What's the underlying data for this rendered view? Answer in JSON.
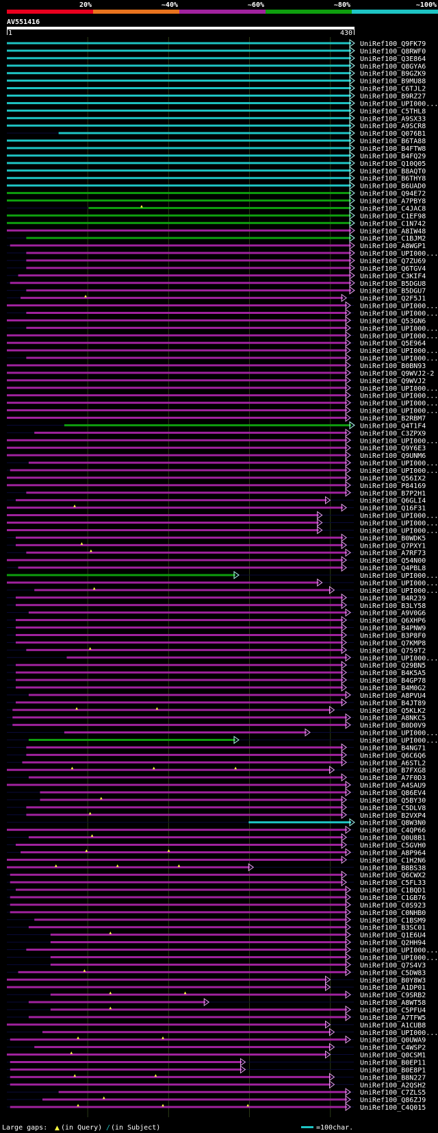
{
  "query_id": "AV551416",
  "scale": {
    "start": "1",
    "end": "430",
    "length": 430
  },
  "identity_legend": [
    {
      "label": "20%",
      "color": "#e8001e"
    },
    {
      "label": "~40%",
      "color": "#e8731e"
    },
    {
      "label": "~60%",
      "color": "#a0229e"
    },
    {
      "label": "~80%",
      "color": "#0e9e0e"
    },
    {
      "label": "~100%",
      "color": "#1ec4c4"
    }
  ],
  "footer": {
    "prefix": "Large gaps:",
    "query": "(in Query)",
    "subject_sym": "/",
    "subject": "(in Subject)",
    "unit": "=100char."
  },
  "gap_symbol": "▲",
  "hits": [
    {
      "label": "UniRef100_Q9FK79",
      "s": 1,
      "e": 430,
      "c": "c",
      "t": 0
    },
    {
      "label": "UniRef100_Q8RWF0",
      "s": 1,
      "e": 430,
      "c": "c",
      "t": 0
    },
    {
      "label": "UniRef100_Q3E864",
      "s": 1,
      "e": 430,
      "c": "c",
      "t": 0
    },
    {
      "label": "UniRef100_Q8GYA6",
      "s": 1,
      "e": 430,
      "c": "c",
      "t": 0
    },
    {
      "label": "UniRef100_B9GZK9",
      "s": 1,
      "e": 430,
      "c": "c",
      "t": 0
    },
    {
      "label": "UniRef100_B9MU88",
      "s": 1,
      "e": 430,
      "c": "c",
      "t": 0
    },
    {
      "label": "UniRef100_C6TJL2",
      "s": 1,
      "e": 430,
      "c": "c",
      "t": 0
    },
    {
      "label": "UniRef100_B9RZ27",
      "s": 1,
      "e": 430,
      "c": "c",
      "t": 0
    },
    {
      "label": "UniRef100_UPI000...",
      "s": 1,
      "e": 430,
      "c": "c",
      "t": 0
    },
    {
      "label": "UniRef100_C5THL8",
      "s": 1,
      "e": 430,
      "c": "c",
      "t": 0
    },
    {
      "label": "UniRef100_A9SX33",
      "s": 1,
      "e": 430,
      "c": "c",
      "t": 0
    },
    {
      "label": "UniRef100_A9SCR8",
      "s": 1,
      "e": 430,
      "c": "c",
      "t": 0
    },
    {
      "label": "UniRef100_Q076B1",
      "s": 65,
      "e": 430,
      "c": "c",
      "t": 0
    },
    {
      "label": "UniRef100_B6TA88",
      "s": 1,
      "e": 430,
      "c": "c",
      "t": 0
    },
    {
      "label": "UniRef100_B4FTW8",
      "s": 1,
      "e": 430,
      "c": "c",
      "t": 0
    },
    {
      "label": "UniRef100_B4FQ29",
      "s": 1,
      "e": 430,
      "c": "c",
      "t": 0
    },
    {
      "label": "UniRef100_Q10Q05",
      "s": 1,
      "e": 430,
      "c": "c",
      "t": 0
    },
    {
      "label": "UniRef100_B8AQT0",
      "s": 1,
      "e": 430,
      "c": "c",
      "t": 0
    },
    {
      "label": "UniRef100_B6THY8",
      "s": 1,
      "e": 430,
      "c": "c",
      "t": 0
    },
    {
      "label": "UniRef100_B6UAD0",
      "s": 1,
      "e": 430,
      "c": "c",
      "t": 0
    },
    {
      "label": "UniRef100_Q94E72",
      "s": 1,
      "e": 430,
      "c": "g",
      "t": 0
    },
    {
      "label": "UniRef100_A7PBY8",
      "s": 1,
      "e": 430,
      "c": "g",
      "t": 0
    },
    {
      "label": "UniRef100_C4JAC8",
      "s": 102,
      "e": 430,
      "c": "g",
      "t": 1
    },
    {
      "label": "UniRef100_C1EF98",
      "s": 1,
      "e": 430,
      "c": "g",
      "t": 0
    },
    {
      "label": "UniRef100_C1N742",
      "s": 1,
      "e": 430,
      "c": "g",
      "t": 0
    },
    {
      "label": "UniRef100_A8IW48",
      "s": 1,
      "e": 430,
      "c": "p",
      "t": 0
    },
    {
      "label": "UniRef100_C1BJM2",
      "s": 25,
      "e": 430,
      "c": "g",
      "t": 0
    },
    {
      "label": "UniRef100_A8WGP1",
      "s": 5,
      "e": 430,
      "c": "p",
      "t": 0
    },
    {
      "label": "UniRef100_UPI000...",
      "s": 25,
      "e": 430,
      "c": "p",
      "t": 0
    },
    {
      "label": "UniRef100_Q7ZU69",
      "s": 25,
      "e": 430,
      "c": "p",
      "t": 0
    },
    {
      "label": "UniRef100_Q6TGV4",
      "s": 25,
      "e": 430,
      "c": "p",
      "t": 0
    },
    {
      "label": "UniRef100_C3KIF4",
      "s": 15,
      "e": 430,
      "c": "p",
      "t": 0
    },
    {
      "label": "UniRef100_B5DGU8",
      "s": 5,
      "e": 430,
      "c": "p",
      "t": 0
    },
    {
      "label": "UniRef100_B5DGU7",
      "s": 25,
      "e": 430,
      "c": "p",
      "t": 0
    },
    {
      "label": "UniRef100_Q2F5J1",
      "s": 18,
      "e": 420,
      "c": "p",
      "t": 1
    },
    {
      "label": "UniRef100_UPI000...",
      "s": 1,
      "e": 425,
      "c": "p",
      "t": 0
    },
    {
      "label": "UniRef100_UPI000...",
      "s": 25,
      "e": 425,
      "c": "p",
      "t": 0
    },
    {
      "label": "UniRef100_Q53GN6",
      "s": 1,
      "e": 425,
      "c": "p",
      "t": 0
    },
    {
      "label": "UniRef100_UPI000...",
      "s": 25,
      "e": 425,
      "c": "p",
      "t": 0
    },
    {
      "label": "UniRef100_UPI000...",
      "s": 1,
      "e": 425,
      "c": "p",
      "t": 0
    },
    {
      "label": "UniRef100_Q5E964",
      "s": 1,
      "e": 425,
      "c": "p",
      "t": 0
    },
    {
      "label": "UniRef100_UPI000...",
      "s": 1,
      "e": 425,
      "c": "p",
      "t": 0
    },
    {
      "label": "UniRef100_UPI000...",
      "s": 25,
      "e": 425,
      "c": "p",
      "t": 0
    },
    {
      "label": "UniRef100_B0BN93",
      "s": 1,
      "e": 425,
      "c": "p",
      "t": 0
    },
    {
      "label": "UniRef100_Q9WVJ2-2",
      "s": 1,
      "e": 425,
      "c": "p",
      "t": 0
    },
    {
      "label": "UniRef100_Q9WVJ2",
      "s": 1,
      "e": 425,
      "c": "p",
      "t": 0
    },
    {
      "label": "UniRef100_UPI000...",
      "s": 1,
      "e": 425,
      "c": "p",
      "t": 0
    },
    {
      "label": "UniRef100_UPI000...",
      "s": 1,
      "e": 425,
      "c": "p",
      "t": 0
    },
    {
      "label": "UniRef100_UPI000...",
      "s": 1,
      "e": 425,
      "c": "p",
      "t": 0
    },
    {
      "label": "UniRef100_UPI000...",
      "s": 1,
      "e": 425,
      "c": "p",
      "t": 0
    },
    {
      "label": "UniRef100_B2RBM7",
      "s": 1,
      "e": 425,
      "c": "p",
      "t": 0
    },
    {
      "label": "UniRef100_Q4T1F4",
      "s": 72,
      "e": 430,
      "c": "g",
      "t": 0
    },
    {
      "label": "UniRef100_C3ZPX9",
      "s": 35,
      "e": 425,
      "c": "p",
      "t": 0
    },
    {
      "label": "UniRef100_UPI000...",
      "s": 1,
      "e": 425,
      "c": "p",
      "t": 0
    },
    {
      "label": "UniRef100_Q9Y6E3",
      "s": 1,
      "e": 425,
      "c": "p",
      "t": 0
    },
    {
      "label": "UniRef100_Q9UNM6",
      "s": 1,
      "e": 425,
      "c": "p",
      "t": 0
    },
    {
      "label": "UniRef100_UPI000...",
      "s": 28,
      "e": 425,
      "c": "p",
      "t": 0
    },
    {
      "label": "UniRef100_UPI000...",
      "s": 5,
      "e": 425,
      "c": "p",
      "t": 0
    },
    {
      "label": "UniRef100_Q56IX2",
      "s": 1,
      "e": 425,
      "c": "p",
      "t": 0
    },
    {
      "label": "UniRef100_P84169",
      "s": 1,
      "e": 425,
      "c": "p",
      "t": 0
    },
    {
      "label": "UniRef100_B7P2H1",
      "s": 25,
      "e": 425,
      "c": "p",
      "t": 0
    },
    {
      "label": "UniRef100_Q6GLI4",
      "s": 12,
      "e": 400,
      "c": "p",
      "t": 0
    },
    {
      "label": "UniRef100_Q16F31",
      "s": 1,
      "e": 420,
      "c": "p",
      "t": 1
    },
    {
      "label": "UniRef100_UPI000...",
      "s": 1,
      "e": 390,
      "c": "p",
      "t": 0
    },
    {
      "label": "UniRef100_UPI000...",
      "s": 1,
      "e": 390,
      "c": "p",
      "t": 0
    },
    {
      "label": "UniRef100_UPI000...",
      "s": 1,
      "e": 390,
      "c": "p",
      "t": 0
    },
    {
      "label": "UniRef100_B0WDK5",
      "s": 12,
      "e": 420,
      "c": "p",
      "t": 0
    },
    {
      "label": "UniRef100_Q7PXY1",
      "s": 12,
      "e": 420,
      "c": "p",
      "t": 1
    },
    {
      "label": "UniRef100_A7RF73",
      "s": 25,
      "e": 425,
      "c": "p",
      "t": 1
    },
    {
      "label": "UniRef100_Q54N00",
      "s": 1,
      "e": 420,
      "c": "p",
      "t": 0
    },
    {
      "label": "UniRef100_Q4PBL8",
      "s": 15,
      "e": 420,
      "c": "p",
      "t": 0
    },
    {
      "label": "UniRef100_UPI000...",
      "s": 1,
      "e": 287,
      "c": "g",
      "t": 0
    },
    {
      "label": "UniRef100_UPI000...",
      "s": 1,
      "e": 390,
      "c": "p",
      "t": 0
    },
    {
      "label": "UniRef100_UPI000...",
      "s": 35,
      "e": 405,
      "c": "p",
      "t": 1
    },
    {
      "label": "UniRef100_B4R239",
      "s": 12,
      "e": 420,
      "c": "p",
      "t": 0
    },
    {
      "label": "UniRef100_B3LY58",
      "s": 12,
      "e": 420,
      "c": "p",
      "t": 0
    },
    {
      "label": "UniRef100_A9V0G6",
      "s": 28,
      "e": 425,
      "c": "p",
      "t": 0
    },
    {
      "label": "UniRef100_Q6XHP6",
      "s": 12,
      "e": 420,
      "c": "p",
      "t": 0
    },
    {
      "label": "UniRef100_B4PNW9",
      "s": 12,
      "e": 420,
      "c": "p",
      "t": 0
    },
    {
      "label": "UniRef100_B3P8F0",
      "s": 12,
      "e": 420,
      "c": "p",
      "t": 0
    },
    {
      "label": "UniRef100_Q7KMP8",
      "s": 12,
      "e": 420,
      "c": "p",
      "t": 0
    },
    {
      "label": "UniRef100_Q759T2",
      "s": 25,
      "e": 420,
      "c": "p",
      "t": 1
    },
    {
      "label": "UniRef100_UPI000...",
      "s": 75,
      "e": 425,
      "c": "p",
      "t": 0
    },
    {
      "label": "UniRef100_Q29BN5",
      "s": 12,
      "e": 420,
      "c": "p",
      "t": 0
    },
    {
      "label": "UniRef100_B4K5A5",
      "s": 12,
      "e": 420,
      "c": "p",
      "t": 0
    },
    {
      "label": "UniRef100_B4GP78",
      "s": 12,
      "e": 420,
      "c": "p",
      "t": 0
    },
    {
      "label": "UniRef100_B4M0G2",
      "s": 12,
      "e": 420,
      "c": "p",
      "t": 0
    },
    {
      "label": "UniRef100_A8PVU4",
      "s": 28,
      "e": 425,
      "c": "p",
      "t": 0
    },
    {
      "label": "UniRef100_B4JT89",
      "s": 12,
      "e": 420,
      "c": "p",
      "t": 0
    },
    {
      "label": "UniRef100_Q5KLK2",
      "s": 8,
      "e": 405,
      "c": "p",
      "t": 2
    },
    {
      "label": "UniRef100_A8NKC5",
      "s": 8,
      "e": 425,
      "c": "p",
      "t": 0
    },
    {
      "label": "UniRef100_B0D0V9",
      "s": 8,
      "e": 425,
      "c": "p",
      "t": 0
    },
    {
      "label": "UniRef100_UPI000...",
      "s": 72,
      "e": 375,
      "c": "p",
      "t": 0
    },
    {
      "label": "UniRef100_UPI000...",
      "s": 28,
      "e": 287,
      "c": "g",
      "t": 0
    },
    {
      "label": "UniRef100_B4NG71",
      "s": 25,
      "e": 420,
      "c": "p",
      "t": 0
    },
    {
      "label": "UniRef100_Q6C6Q6",
      "s": 25,
      "e": 420,
      "c": "p",
      "t": 0
    },
    {
      "label": "UniRef100_A6STL2",
      "s": 20,
      "e": 420,
      "c": "p",
      "t": 0
    },
    {
      "label": "UniRef100_B7FXG8",
      "s": 1,
      "e": 405,
      "c": "p",
      "t": 3
    },
    {
      "label": "UniRef100_A7F0D3",
      "s": 28,
      "e": 420,
      "c": "p",
      "t": 0
    },
    {
      "label": "UniRef100_A4SAU9",
      "s": 1,
      "e": 425,
      "c": "p",
      "t": 0
    },
    {
      "label": "UniRef100_Q86EV4",
      "s": 42,
      "e": 425,
      "c": "p",
      "t": 0
    },
    {
      "label": "UniRef100_Q5BY30",
      "s": 42,
      "e": 420,
      "c": "p",
      "t": 1
    },
    {
      "label": "UniRef100_C5DLV8",
      "s": 25,
      "e": 420,
      "c": "p",
      "t": 0
    },
    {
      "label": "UniRef100_B2VXP4",
      "s": 25,
      "e": 420,
      "c": "p",
      "t": 1
    },
    {
      "label": "UniRef100_Q8W3N0",
      "s": 300,
      "e": 430,
      "c": "c",
      "t": 0
    },
    {
      "label": "UniRef100_C4QP66",
      "s": 1,
      "e": 425,
      "c": "p",
      "t": 0
    },
    {
      "label": "UniRef100_Q0U8B1",
      "s": 28,
      "e": 420,
      "c": "p",
      "t": 1
    },
    {
      "label": "UniRef100_C5GVH0",
      "s": 12,
      "e": 420,
      "c": "p",
      "t": 0
    },
    {
      "label": "UniRef100_A8P964",
      "s": 18,
      "e": 425,
      "c": "p",
      "t": 2
    },
    {
      "label": "UniRef100_C1H2N6",
      "s": 1,
      "e": 420,
      "c": "p",
      "t": 0
    },
    {
      "label": "UniRef100_B8BS38",
      "s": 1,
      "e": 305,
      "c": "p",
      "t": 3
    },
    {
      "label": "UniRef100_Q6CWX2",
      "s": 5,
      "e": 420,
      "c": "p",
      "t": 0
    },
    {
      "label": "UniRef100_C5FL33",
      "s": 5,
      "e": 420,
      "c": "p",
      "t": 0
    },
    {
      "label": "UniRef100_C1BQD1",
      "s": 12,
      "e": 425,
      "c": "p",
      "t": 0
    },
    {
      "label": "UniRef100_C1GB76",
      "s": 5,
      "e": 425,
      "c": "p",
      "t": 0
    },
    {
      "label": "UniRef100_C0S923",
      "s": 5,
      "e": 425,
      "c": "p",
      "t": 0
    },
    {
      "label": "UniRef100_C0NHB0",
      "s": 5,
      "e": 425,
      "c": "p",
      "t": 0
    },
    {
      "label": "UniRef100_C1BSM9",
      "s": 35,
      "e": 425,
      "c": "p",
      "t": 0
    },
    {
      "label": "UniRef100_B3SC01",
      "s": 28,
      "e": 425,
      "c": "p",
      "t": 0
    },
    {
      "label": "UniRef100_Q1E6U4",
      "s": 55,
      "e": 425,
      "c": "p",
      "t": 1
    },
    {
      "label": "UniRef100_Q2HH94",
      "s": 55,
      "e": 425,
      "c": "p",
      "t": 0
    },
    {
      "label": "UniRef100_UPI000...",
      "s": 25,
      "e": 425,
      "c": "p",
      "t": 0
    },
    {
      "label": "UniRef100_UPI000...",
      "s": 55,
      "e": 425,
      "c": "p",
      "t": 0
    },
    {
      "label": "UniRef100_Q7S4V3",
      "s": 55,
      "e": 425,
      "c": "p",
      "t": 0
    },
    {
      "label": "UniRef100_C5DW83",
      "s": 15,
      "e": 425,
      "c": "p",
      "t": 1
    },
    {
      "label": "UniRef100_B0Y8W3",
      "s": 1,
      "e": 400,
      "c": "p",
      "t": 0
    },
    {
      "label": "UniRef100_A1DP01",
      "s": 1,
      "e": 400,
      "c": "p",
      "t": 0
    },
    {
      "label": "UniRef100_C9SRB2",
      "s": 55,
      "e": 425,
      "c": "p",
      "t": 2
    },
    {
      "label": "UniRef100_A8WT58",
      "s": 28,
      "e": 250,
      "c": "p",
      "t": 0
    },
    {
      "label": "UniRef100_C5PFU4",
      "s": 55,
      "e": 425,
      "c": "p",
      "t": 1
    },
    {
      "label": "UniRef100_A7TFW5",
      "s": 28,
      "e": 425,
      "c": "p",
      "t": 0
    },
    {
      "label": "UniRef100_A1CUB8",
      "s": 1,
      "e": 400,
      "c": "p",
      "t": 0
    },
    {
      "label": "UniRef100_UPI000...",
      "s": 45,
      "e": 405,
      "c": "p",
      "t": 0
    },
    {
      "label": "UniRef100_Q0UWA9",
      "s": 5,
      "e": 425,
      "c": "p",
      "t": 2
    },
    {
      "label": "UniRef100_C4WSP2",
      "s": 35,
      "e": 405,
      "c": "p",
      "t": 0
    },
    {
      "label": "UniRef100_Q0CSM1",
      "s": 1,
      "e": 400,
      "c": "p",
      "t": 1
    },
    {
      "label": "UniRef100_B0EP11",
      "s": 5,
      "e": 295,
      "c": "p",
      "t": 0
    },
    {
      "label": "UniRef100_B0E8P1",
      "s": 5,
      "e": 295,
      "c": "p",
      "t": 0
    },
    {
      "label": "UniRef100_B8N227",
      "s": 5,
      "e": 405,
      "c": "p",
      "t": 2
    },
    {
      "label": "UniRef100_A2QSH2",
      "s": 5,
      "e": 405,
      "c": "p",
      "t": 0
    },
    {
      "label": "UniRef100_C7ZLS5",
      "s": 65,
      "e": 425,
      "c": "p",
      "t": 0
    },
    {
      "label": "UniRef100_Q86ZJ9",
      "s": 45,
      "e": 425,
      "c": "p",
      "t": 1
    },
    {
      "label": "UniRef100_C4Q015",
      "s": 5,
      "e": 425,
      "c": "p",
      "t": 3
    }
  ]
}
